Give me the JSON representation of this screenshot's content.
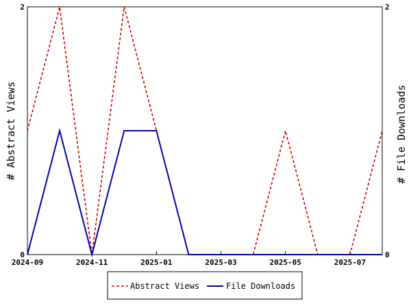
{
  "chart_data": {
    "type": "line",
    "x": [
      "2024-09",
      "2024-10",
      "2024-11",
      "2024-12",
      "2025-01",
      "2025-02",
      "2025-03",
      "2025-04",
      "2025-05",
      "2025-06",
      "2025-07",
      "2025-08"
    ],
    "x_tick_labels": [
      "2024-09",
      "2024-11",
      "2025-01",
      "2025-03",
      "2025-05",
      "2025-07"
    ],
    "series": [
      {
        "name": "Abstract Views",
        "axis": "left",
        "color": "#cc0000",
        "style": "dashed",
        "values": [
          1,
          2,
          0,
          2,
          1,
          0,
          0,
          0,
          1,
          0,
          0,
          1
        ]
      },
      {
        "name": "File Downloads",
        "axis": "right",
        "color": "#0000aa",
        "style": "solid",
        "values": [
          0,
          1,
          0,
          1,
          1,
          0,
          0,
          0,
          0,
          0,
          0,
          0
        ]
      }
    ],
    "ylabel_left": "# Abstract Views",
    "ylabel_right": "# File Downloads",
    "ylim_left": [
      0,
      2
    ],
    "ylim_right": [
      0,
      2
    ],
    "y_ticks_left": [
      0,
      2
    ],
    "y_ticks_right": [
      0,
      2
    ],
    "grid": false,
    "legend_position": "bottom"
  }
}
